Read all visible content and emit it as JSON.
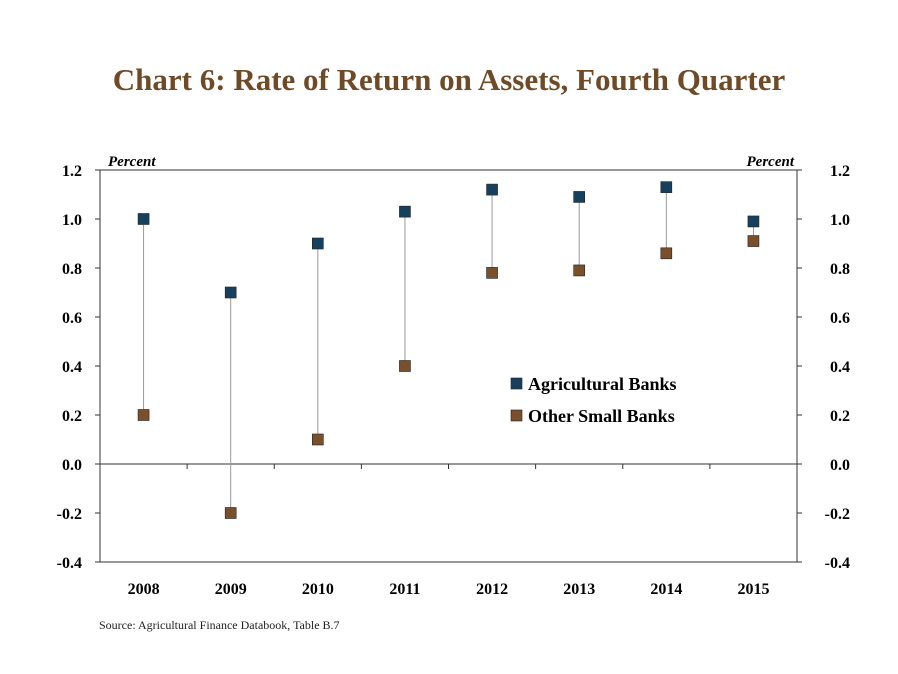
{
  "chart_data": {
    "type": "scatter",
    "title": "Chart 6: Rate of Return on Assets, Fourth Quarter",
    "left_axis_label": "Percent",
    "right_axis_label": "Percent",
    "categories": [
      "2008",
      "2009",
      "2010",
      "2011",
      "2012",
      "2013",
      "2014",
      "2015"
    ],
    "series": [
      {
        "name": "Agricultural Banks",
        "color": "#17405e",
        "values": [
          1.0,
          0.7,
          0.9,
          1.03,
          1.12,
          1.09,
          1.13,
          0.99
        ]
      },
      {
        "name": "Other Small Banks",
        "color": "#7a4f2c",
        "values": [
          0.2,
          -0.2,
          0.1,
          0.4,
          0.78,
          0.79,
          0.86,
          0.91
        ]
      }
    ],
    "ylim": [
      -0.4,
      1.2
    ],
    "yticks": [
      "1.2",
      "1.0",
      "0.8",
      "0.6",
      "0.4",
      "0.2",
      "0.0",
      "-0.2",
      "-0.4"
    ],
    "grid": false,
    "legend_position": "center-right",
    "source": "Source: Agricultural Finance Databook, Table B.7"
  }
}
